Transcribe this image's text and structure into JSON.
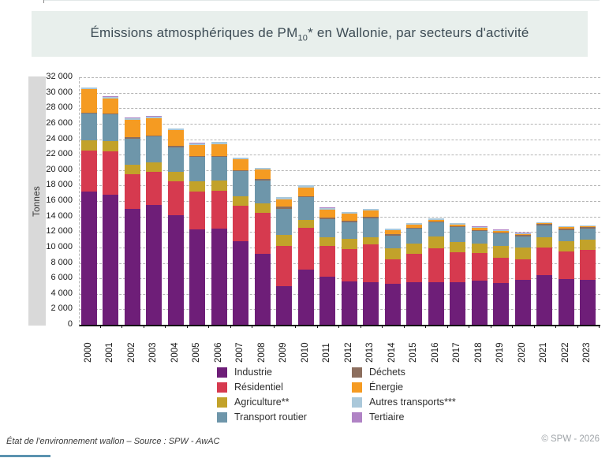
{
  "title": {
    "pre": "Émissions atmosphériques de PM",
    "sub": "10",
    "post": "* en Wallonie, par secteurs d'activité"
  },
  "footer": {
    "source": "État de l'environnement wallon – Source : SPW - AwAC",
    "copyright": "© SPW - 2026"
  },
  "chart_data": {
    "type": "bar",
    "stacked": true,
    "title": "Émissions atmosphériques de PM10* en Wallonie, par secteurs d'activité",
    "xlabel": "",
    "ylabel": "Tonnes",
    "ylim": [
      0,
      32000
    ],
    "y_tick_step": 2000,
    "y_tick_labels": [
      "0",
      "2 000",
      "4 000",
      "6 000",
      "8 000",
      "10 000",
      "12 000",
      "14 000",
      "16 000",
      "18 000",
      "20 000",
      "22 000",
      "24 000",
      "26 000",
      "28 000",
      "30 000",
      "32 000"
    ],
    "grid": "horizontal-dashed",
    "legend_position": "bottom",
    "categories": [
      2000,
      2001,
      2002,
      2003,
      2004,
      2005,
      2006,
      2007,
      2008,
      2009,
      2010,
      2011,
      2012,
      2013,
      2014,
      2015,
      2016,
      2017,
      2018,
      2019,
      2020,
      2021,
      2022,
      2023
    ],
    "series": [
      {
        "name": "Industrie",
        "color": "#6e1e78",
        "values": [
          17200,
          16800,
          15000,
          15500,
          14200,
          12300,
          12400,
          10800,
          9200,
          5000,
          7100,
          6200,
          5600,
          5500,
          5300,
          5500,
          5500,
          5500,
          5700,
          5400,
          5800,
          6400,
          5900,
          5800
        ]
      },
      {
        "name": "Résidentiel",
        "color": "#d63a4f",
        "values": [
          5300,
          5600,
          4500,
          4300,
          4400,
          4900,
          4900,
          4600,
          5300,
          5200,
          5400,
          4000,
          4200,
          4900,
          3200,
          3700,
          4400,
          3900,
          3600,
          3300,
          2700,
          3600,
          3600,
          3900
        ]
      },
      {
        "name": "Agriculture**",
        "color": "#c2a22a",
        "values": [
          1300,
          1300,
          1200,
          1150,
          1200,
          1350,
          1350,
          1200,
          1200,
          1400,
          1050,
          1100,
          1300,
          900,
          1350,
          1350,
          1500,
          1350,
          1250,
          1500,
          1500,
          1350,
          1300,
          1350
        ]
      },
      {
        "name": "Transport routier",
        "color": "#6e96aa",
        "values": [
          3500,
          3500,
          3400,
          3400,
          3150,
          3150,
          3050,
          3250,
          3000,
          3400,
          2950,
          2400,
          2200,
          2500,
          1700,
          1850,
          1850,
          1850,
          1600,
          1600,
          1450,
          1450,
          1450,
          1350
        ]
      },
      {
        "name": "Déchets",
        "color": "#8c6e5e",
        "values": [
          150,
          150,
          150,
          150,
          150,
          120,
          120,
          130,
          130,
          240,
          150,
          170,
          140,
          140,
          140,
          160,
          100,
          120,
          120,
          120,
          150,
          200,
          200,
          200
        ]
      },
      {
        "name": "Énergie",
        "color": "#f59b22",
        "values": [
          3000,
          1950,
          2300,
          2250,
          2100,
          1400,
          1550,
          1400,
          1250,
          1000,
          1100,
          1000,
          900,
          800,
          500,
          350,
          250,
          250,
          250,
          250,
          150,
          150,
          150,
          150
        ]
      },
      {
        "name": "Autres transports***",
        "color": "#aac8da",
        "values": [
          200,
          200,
          200,
          180,
          180,
          250,
          250,
          250,
          200,
          250,
          250,
          250,
          250,
          250,
          200,
          200,
          150,
          150,
          150,
          100,
          100,
          100,
          100,
          100
        ]
      },
      {
        "name": "Tertiaire",
        "color": "#b083c5",
        "values": [
          50,
          50,
          50,
          50,
          50,
          30,
          30,
          30,
          30,
          30,
          30,
          30,
          30,
          30,
          30,
          30,
          30,
          30,
          30,
          30,
          30,
          30,
          30,
          30
        ]
      }
    ],
    "legend_columns": [
      [
        0,
        1,
        2,
        3
      ],
      [
        4,
        5,
        6,
        7
      ]
    ]
  }
}
